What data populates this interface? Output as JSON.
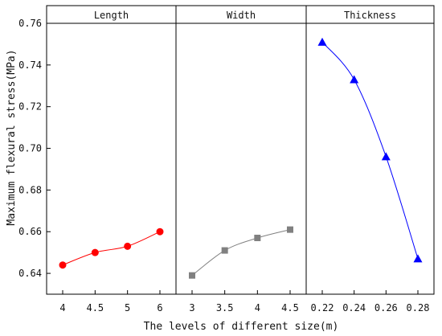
{
  "chart_data": {
    "type": "line",
    "ylabel": "Maximum flexural stress(MPa)",
    "xlabel": "The levels of different size(m)",
    "ylim": [
      0.63,
      0.76
    ],
    "yticks": [
      0.64,
      0.66,
      0.68,
      0.7,
      0.72,
      0.74,
      0.76
    ],
    "ytick_labels": [
      "0.64",
      "0.66",
      "0.68",
      "0.70",
      "0.72",
      "0.74",
      "0.76"
    ],
    "grid": false,
    "panels": [
      {
        "title": "Length",
        "categories": [
          "4",
          "4.5",
          "5",
          "6"
        ],
        "values": [
          0.644,
          0.65,
          0.653,
          0.66
        ],
        "color": "#ff0000",
        "marker": "circle"
      },
      {
        "title": "Width",
        "categories": [
          "3",
          "3.5",
          "4",
          "4.5"
        ],
        "values": [
          0.639,
          0.651,
          0.657,
          0.661
        ],
        "color": "#808080",
        "marker": "square"
      },
      {
        "title": "Thickness",
        "categories": [
          "0.22",
          "0.24",
          "0.26",
          "0.28"
        ],
        "values": [
          0.751,
          0.733,
          0.696,
          0.647
        ],
        "color": "#0000ff",
        "marker": "triangle"
      }
    ]
  }
}
